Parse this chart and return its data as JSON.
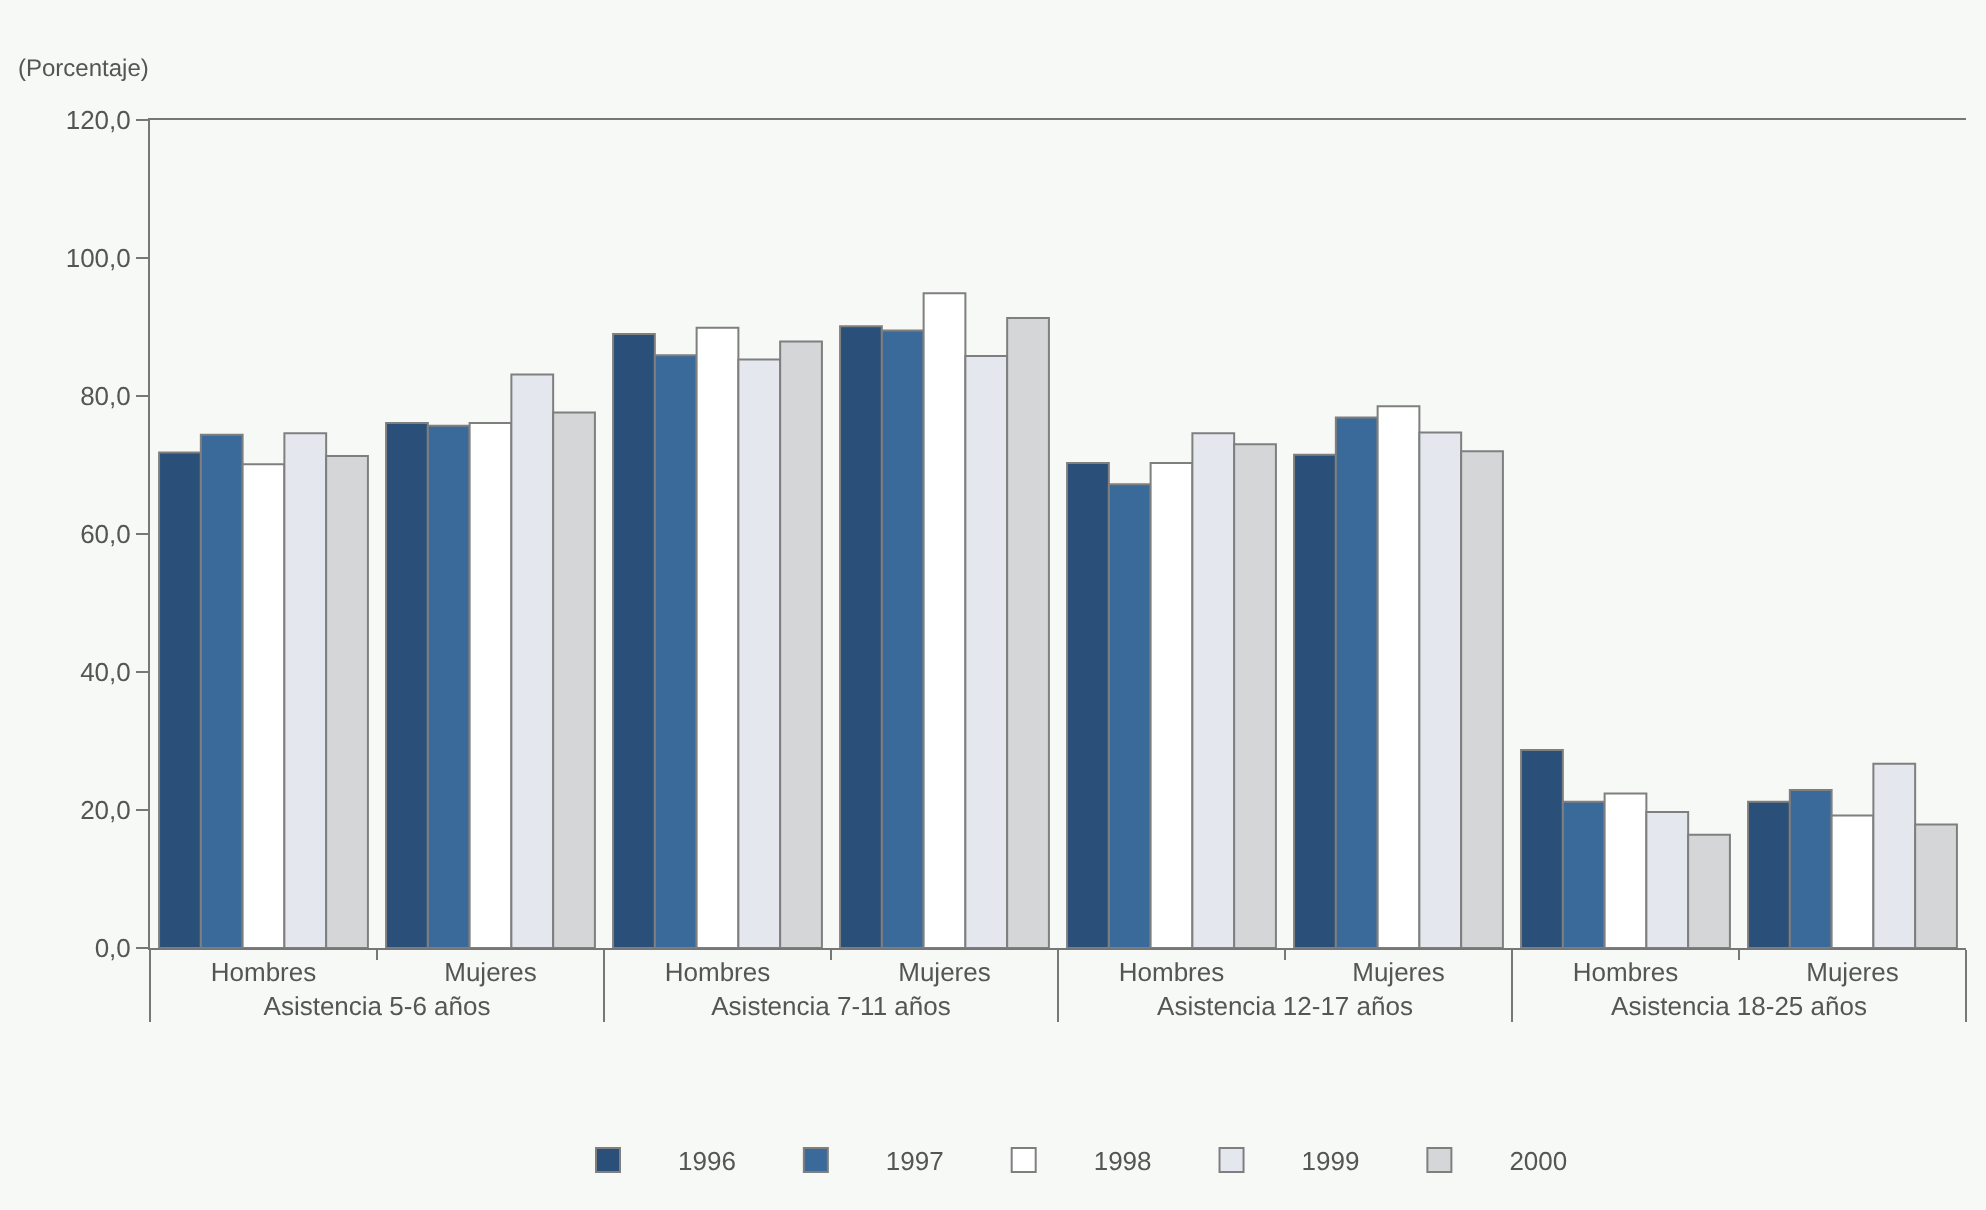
{
  "chart_data": {
    "type": "bar",
    "ylabel": "(Porcentaje)",
    "categories": [
      "Hombres",
      "Mujeres",
      "Hombres",
      "Mujeres",
      "Hombres",
      "Mujeres",
      "Hombres",
      "Mujeres"
    ],
    "annotations": [
      "Asistencia 5-6 años",
      "Asistencia 7-11 años",
      "Asistencia 12-17 años",
      "Asistencia 18-25 años"
    ],
    "series": [
      {
        "name": "1996",
        "color": "#2a4f78",
        "values": [
          71.8,
          76.1,
          89.0,
          90.1,
          70.3,
          71.5,
          28.7,
          21.2
        ]
      },
      {
        "name": "1997",
        "color": "#3a6a9a",
        "values": [
          74.4,
          75.7,
          85.9,
          89.5,
          67.2,
          76.9,
          21.2,
          22.9
        ]
      },
      {
        "name": "1998",
        "color": "#ffffff",
        "values": [
          70.1,
          76.1,
          89.9,
          94.9,
          70.3,
          78.5,
          22.4,
          19.2
        ]
      },
      {
        "name": "1999",
        "color": "#e4e8ee",
        "values": [
          74.6,
          83.1,
          85.3,
          85.8,
          74.6,
          74.7,
          19.7,
          26.7
        ]
      },
      {
        "name": "2000",
        "color": "#d4d6d8",
        "values": [
          71.3,
          77.6,
          87.9,
          91.3,
          73.0,
          72.0,
          16.4,
          17.9
        ]
      }
    ],
    "ylim": [
      0,
      120
    ],
    "yticks": [
      {
        "value": 0,
        "label": "0,0"
      },
      {
        "value": 20,
        "label": "20,0"
      },
      {
        "value": 40,
        "label": "40,0"
      },
      {
        "value": 60,
        "label": "60,0"
      },
      {
        "value": 80,
        "label": "80,0"
      },
      {
        "value": 100,
        "label": "100,0"
      },
      {
        "value": 120,
        "label": "120,0"
      }
    ],
    "grid": false,
    "legend": "bottom"
  }
}
